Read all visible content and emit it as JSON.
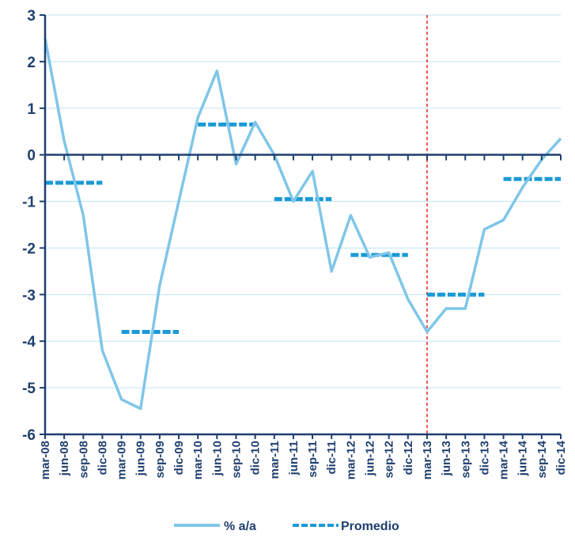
{
  "chart_data": {
    "type": "line",
    "title": "",
    "xlabel": "",
    "ylabel": "",
    "ylim": [
      -6,
      3
    ],
    "yticks": [
      3,
      2,
      1,
      0,
      -1,
      -2,
      -3,
      -4,
      -5,
      -6
    ],
    "categories": [
      "mar-08",
      "jun-08",
      "sep-08",
      "dic-08",
      "mar-09",
      "jun-09",
      "sep-09",
      "dic-09",
      "mar-10",
      "jun-10",
      "sep-10",
      "dic-10",
      "mar-11",
      "jun-11",
      "sep-11",
      "dic-11",
      "mar-12",
      "jun-12",
      "sep-12",
      "dic-12",
      "mar-13",
      "jun-13",
      "sep-13",
      "dic-13",
      "mar-14",
      "jun-14",
      "sep-14",
      "dic-14"
    ],
    "grid": true,
    "legend_position": "bottom",
    "vertical_marker": {
      "category": "mar-13",
      "color": "#d9262c"
    },
    "series": [
      {
        "name": "% a/a",
        "style": "line",
        "color": "#7fc6e8",
        "values": [
          2.5,
          0.3,
          -1.3,
          -4.2,
          -5.25,
          -5.45,
          -2.8,
          -1.0,
          0.8,
          1.8,
          -0.2,
          0.7,
          0.0,
          -1.0,
          -0.35,
          -2.5,
          -1.3,
          -2.2,
          -2.1,
          -3.1,
          -3.8,
          -3.3,
          -3.3,
          -1.6,
          -1.4,
          -0.7,
          -0.1,
          0.35
        ]
      },
      {
        "name": "Promedio",
        "style": "dashed-steps",
        "color": "#1a9ad6",
        "segments": [
          {
            "from": "mar-08",
            "to": "dic-08",
            "value": -0.6
          },
          {
            "from": "mar-09",
            "to": "dic-09",
            "value": -3.8
          },
          {
            "from": "mar-10",
            "to": "dic-10",
            "value": 0.65
          },
          {
            "from": "mar-11",
            "to": "dic-11",
            "value": -0.95
          },
          {
            "from": "mar-12",
            "to": "dic-12",
            "value": -2.15
          },
          {
            "from": "mar-13",
            "to": "dic-13",
            "value": -3.0
          },
          {
            "from": "mar-14",
            "to": "dic-14",
            "value": -0.52
          }
        ]
      }
    ]
  }
}
